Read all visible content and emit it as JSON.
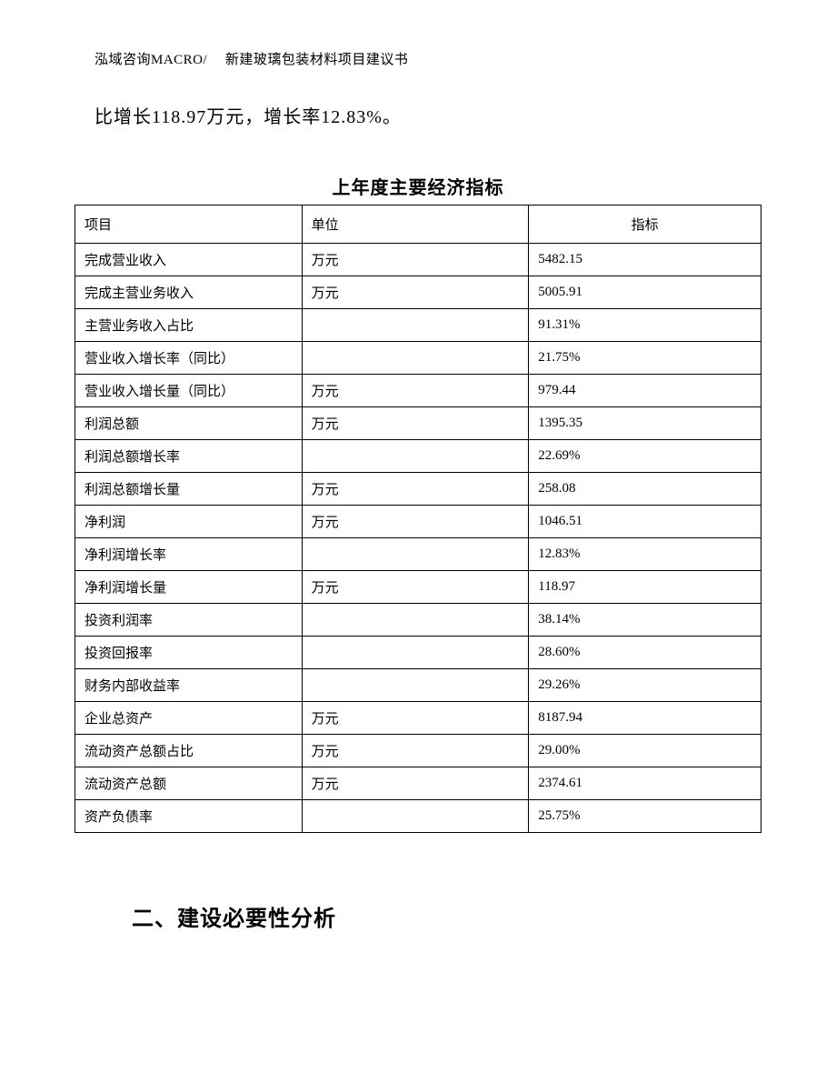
{
  "header": {
    "text": "泓域咨询MACRO/　 新建玻璃包装材料项目建议书"
  },
  "body_paragraph": {
    "text": "比增长118.97万元，增长率12.83%。"
  },
  "table": {
    "title": "上年度主要经济指标",
    "columns": {
      "item": "项目",
      "unit": "单位",
      "value": "指标"
    },
    "rows": [
      {
        "item": "完成营业收入",
        "unit": "万元",
        "value": "5482.15"
      },
      {
        "item": "完成主营业务收入",
        "unit": "万元",
        "value": "5005.91"
      },
      {
        "item": "主营业务收入占比",
        "unit": "",
        "value": "91.31%"
      },
      {
        "item": "营业收入增长率（同比）",
        "unit": "",
        "value": "21.75%"
      },
      {
        "item": "营业收入增长量（同比）",
        "unit": "万元",
        "value": "979.44"
      },
      {
        "item": "利润总额",
        "unit": "万元",
        "value": "1395.35"
      },
      {
        "item": "利润总额增长率",
        "unit": "",
        "value": "22.69%"
      },
      {
        "item": "利润总额增长量",
        "unit": "万元",
        "value": "258.08"
      },
      {
        "item": "净利润",
        "unit": "万元",
        "value": "1046.51"
      },
      {
        "item": "净利润增长率",
        "unit": "",
        "value": "12.83%"
      },
      {
        "item": "净利润增长量",
        "unit": "万元",
        "value": "118.97"
      },
      {
        "item": "投资利润率",
        "unit": "",
        "value": "38.14%"
      },
      {
        "item": "投资回报率",
        "unit": "",
        "value": "28.60%"
      },
      {
        "item": "财务内部收益率",
        "unit": "",
        "value": "29.26%"
      },
      {
        "item": "企业总资产",
        "unit": "万元",
        "value": "8187.94"
      },
      {
        "item": "流动资产总额占比",
        "unit": "万元",
        "value": "29.00%"
      },
      {
        "item": "流动资产总额",
        "unit": "万元",
        "value": "2374.61"
      },
      {
        "item": "资产负债率",
        "unit": "",
        "value": "25.75%"
      }
    ]
  },
  "section_heading": {
    "text": "二、建设必要性分析"
  }
}
